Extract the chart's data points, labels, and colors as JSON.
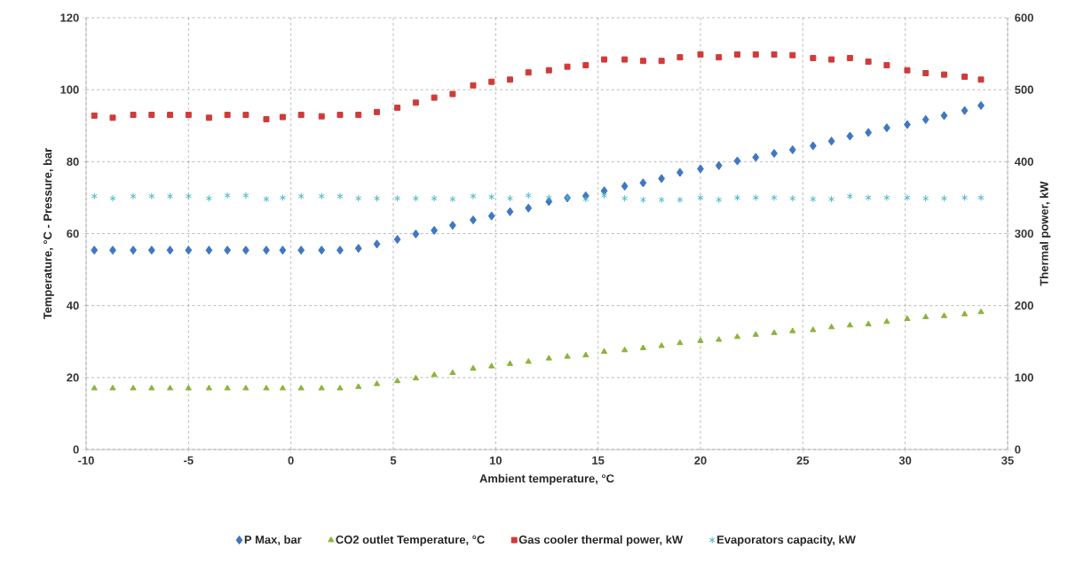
{
  "chart_data": {
    "type": "scatter",
    "xlabel": "Ambient temperature, °C",
    "ylabel": "Temperature, °C - Pressure, bar",
    "y2label": "Thermal power, kW",
    "x": [
      -9.6,
      -8.7,
      -7.7,
      -6.8,
      -5.9,
      -5.0,
      -4.0,
      -3.1,
      -2.2,
      -1.2,
      -0.4,
      0.5,
      1.5,
      2.4,
      3.3,
      4.2,
      5.2,
      6.1,
      7.0,
      7.9,
      8.9,
      9.8,
      10.7,
      11.6,
      12.6,
      13.5,
      14.4,
      15.3,
      16.3,
      17.2,
      18.1,
      19.0,
      20.0,
      20.9,
      21.8,
      22.7,
      23.6,
      24.5,
      25.5,
      26.4,
      27.3,
      28.2,
      29.1,
      30.1,
      31.0,
      31.9,
      32.9,
      33.7
    ],
    "series": [
      {
        "name": "P Max, bar",
        "color": "#3f77c2",
        "marker": "diamond",
        "values": [
          55.4,
          55.4,
          55.4,
          55.4,
          55.4,
          55.4,
          55.4,
          55.4,
          55.4,
          55.4,
          55.4,
          55.4,
          55.4,
          55.4,
          55.9,
          57.1,
          58.4,
          59.9,
          60.9,
          62.3,
          63.8,
          64.9,
          66.1,
          67.1,
          68.9,
          69.9,
          70.5,
          71.9,
          73.2,
          74.1,
          75.3,
          77.0,
          78.0,
          78.9,
          80.2,
          81.2,
          82.3,
          83.3,
          84.4,
          85.7,
          87.1,
          88.1,
          89.4,
          90.3,
          91.7,
          92.8,
          94.2,
          95.6
        ]
      },
      {
        "name": "CO2 outlet Temperature, °C",
        "color": "#8db33a",
        "marker": "triangle",
        "values": [
          17.0,
          17.0,
          17.0,
          17.0,
          17.0,
          17.0,
          17.0,
          17.0,
          17.0,
          17.0,
          17.0,
          17.0,
          17.0,
          17.0,
          17.4,
          18.2,
          19.0,
          19.8,
          20.7,
          21.3,
          22.5,
          23.1,
          23.8,
          24.4,
          25.3,
          25.8,
          26.2,
          27.2,
          27.6,
          28.2,
          28.8,
          29.6,
          30.2,
          30.5,
          31.3,
          31.9,
          32.4,
          32.9,
          33.2,
          34.0,
          34.5,
          34.8,
          35.5,
          36.3,
          36.8,
          37.1,
          37.6,
          38.2
        ]
      },
      {
        "name": "Gas cooler thermal power, kW",
        "color": "#d03a3a",
        "marker": "square",
        "axis": "y2",
        "values": [
          464,
          461,
          465,
          465,
          465,
          465,
          461,
          465,
          465,
          459,
          462,
          465,
          463,
          465,
          465,
          469,
          475,
          482,
          489,
          494,
          506,
          511,
          514,
          524,
          527,
          532,
          534,
          542,
          542,
          540,
          540,
          545,
          549,
          545,
          549,
          549,
          549,
          548,
          544,
          542,
          544,
          539,
          534,
          527,
          523,
          521,
          518,
          514
        ]
      },
      {
        "name": "Evaporators capacity, kW",
        "color": "#4bb8c9",
        "marker": "cross",
        "axis": "y2",
        "values": [
          352,
          349,
          352,
          352,
          352,
          352,
          349,
          353,
          353,
          348,
          350,
          352,
          352,
          352,
          349,
          349,
          349,
          349,
          349,
          348,
          352,
          351,
          349,
          353,
          350,
          350,
          348,
          353,
          349,
          347,
          347,
          347,
          350,
          347,
          350,
          350,
          350,
          349,
          348,
          348,
          352,
          350,
          350,
          350,
          349,
          349,
          350,
          350
        ]
      }
    ],
    "xlim": [
      -10,
      35
    ],
    "xticks": [
      -10,
      -5,
      0,
      5,
      10,
      15,
      20,
      25,
      30,
      35
    ],
    "ylim": [
      0,
      120
    ],
    "yticks": [
      0,
      20,
      40,
      60,
      80,
      100,
      120
    ],
    "y2lim": [
      0,
      600
    ],
    "y2ticks": [
      0,
      100,
      200,
      300,
      400,
      500,
      600
    ],
    "grid": true,
    "legend": "bottom"
  }
}
